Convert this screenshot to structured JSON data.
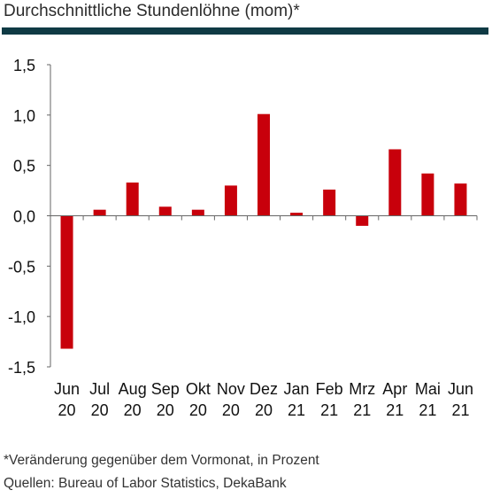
{
  "header": {
    "title": "Durchschnittliche Stundenlöhne (mom)*"
  },
  "footer": {
    "note": "*Veränderung gegenüber dem Vormonat, in Prozent",
    "sources": "Quellen: Bureau of Labor Statistics, DekaBank"
  },
  "colors": {
    "bar": "#c8000b",
    "rule": "#0f3a44",
    "axis": "#666666",
    "text": "#111111"
  },
  "chart_data": {
    "type": "bar",
    "title": "Durchschnittliche Stundenlöhne (mom)*",
    "xlabel": "",
    "ylabel": "",
    "ylim": [
      -1.5,
      1.5
    ],
    "yticks": [
      "1,5",
      "1,0",
      "0,5",
      "0,0",
      "-0,5",
      "-1,0",
      "-1,5"
    ],
    "ytick_values": [
      1.5,
      1.0,
      0.5,
      0.0,
      -0.5,
      -1.0,
      -1.5
    ],
    "grid": false,
    "legend": "none",
    "categories": [
      [
        "Jun",
        "20"
      ],
      [
        "Jul",
        "20"
      ],
      [
        "Aug",
        "20"
      ],
      [
        "Sep",
        "20"
      ],
      [
        "Okt",
        "20"
      ],
      [
        "Nov",
        "20"
      ],
      [
        "Dez",
        "20"
      ],
      [
        "Jan",
        "21"
      ],
      [
        "Feb",
        "21"
      ],
      [
        "Mrz",
        "21"
      ],
      [
        "Apr",
        "21"
      ],
      [
        "Mai",
        "21"
      ],
      [
        "Jun",
        "21"
      ]
    ],
    "values": [
      -1.32,
      0.06,
      0.33,
      0.09,
      0.06,
      0.3,
      1.01,
      0.03,
      0.26,
      -0.1,
      0.66,
      0.42,
      0.32
    ]
  }
}
